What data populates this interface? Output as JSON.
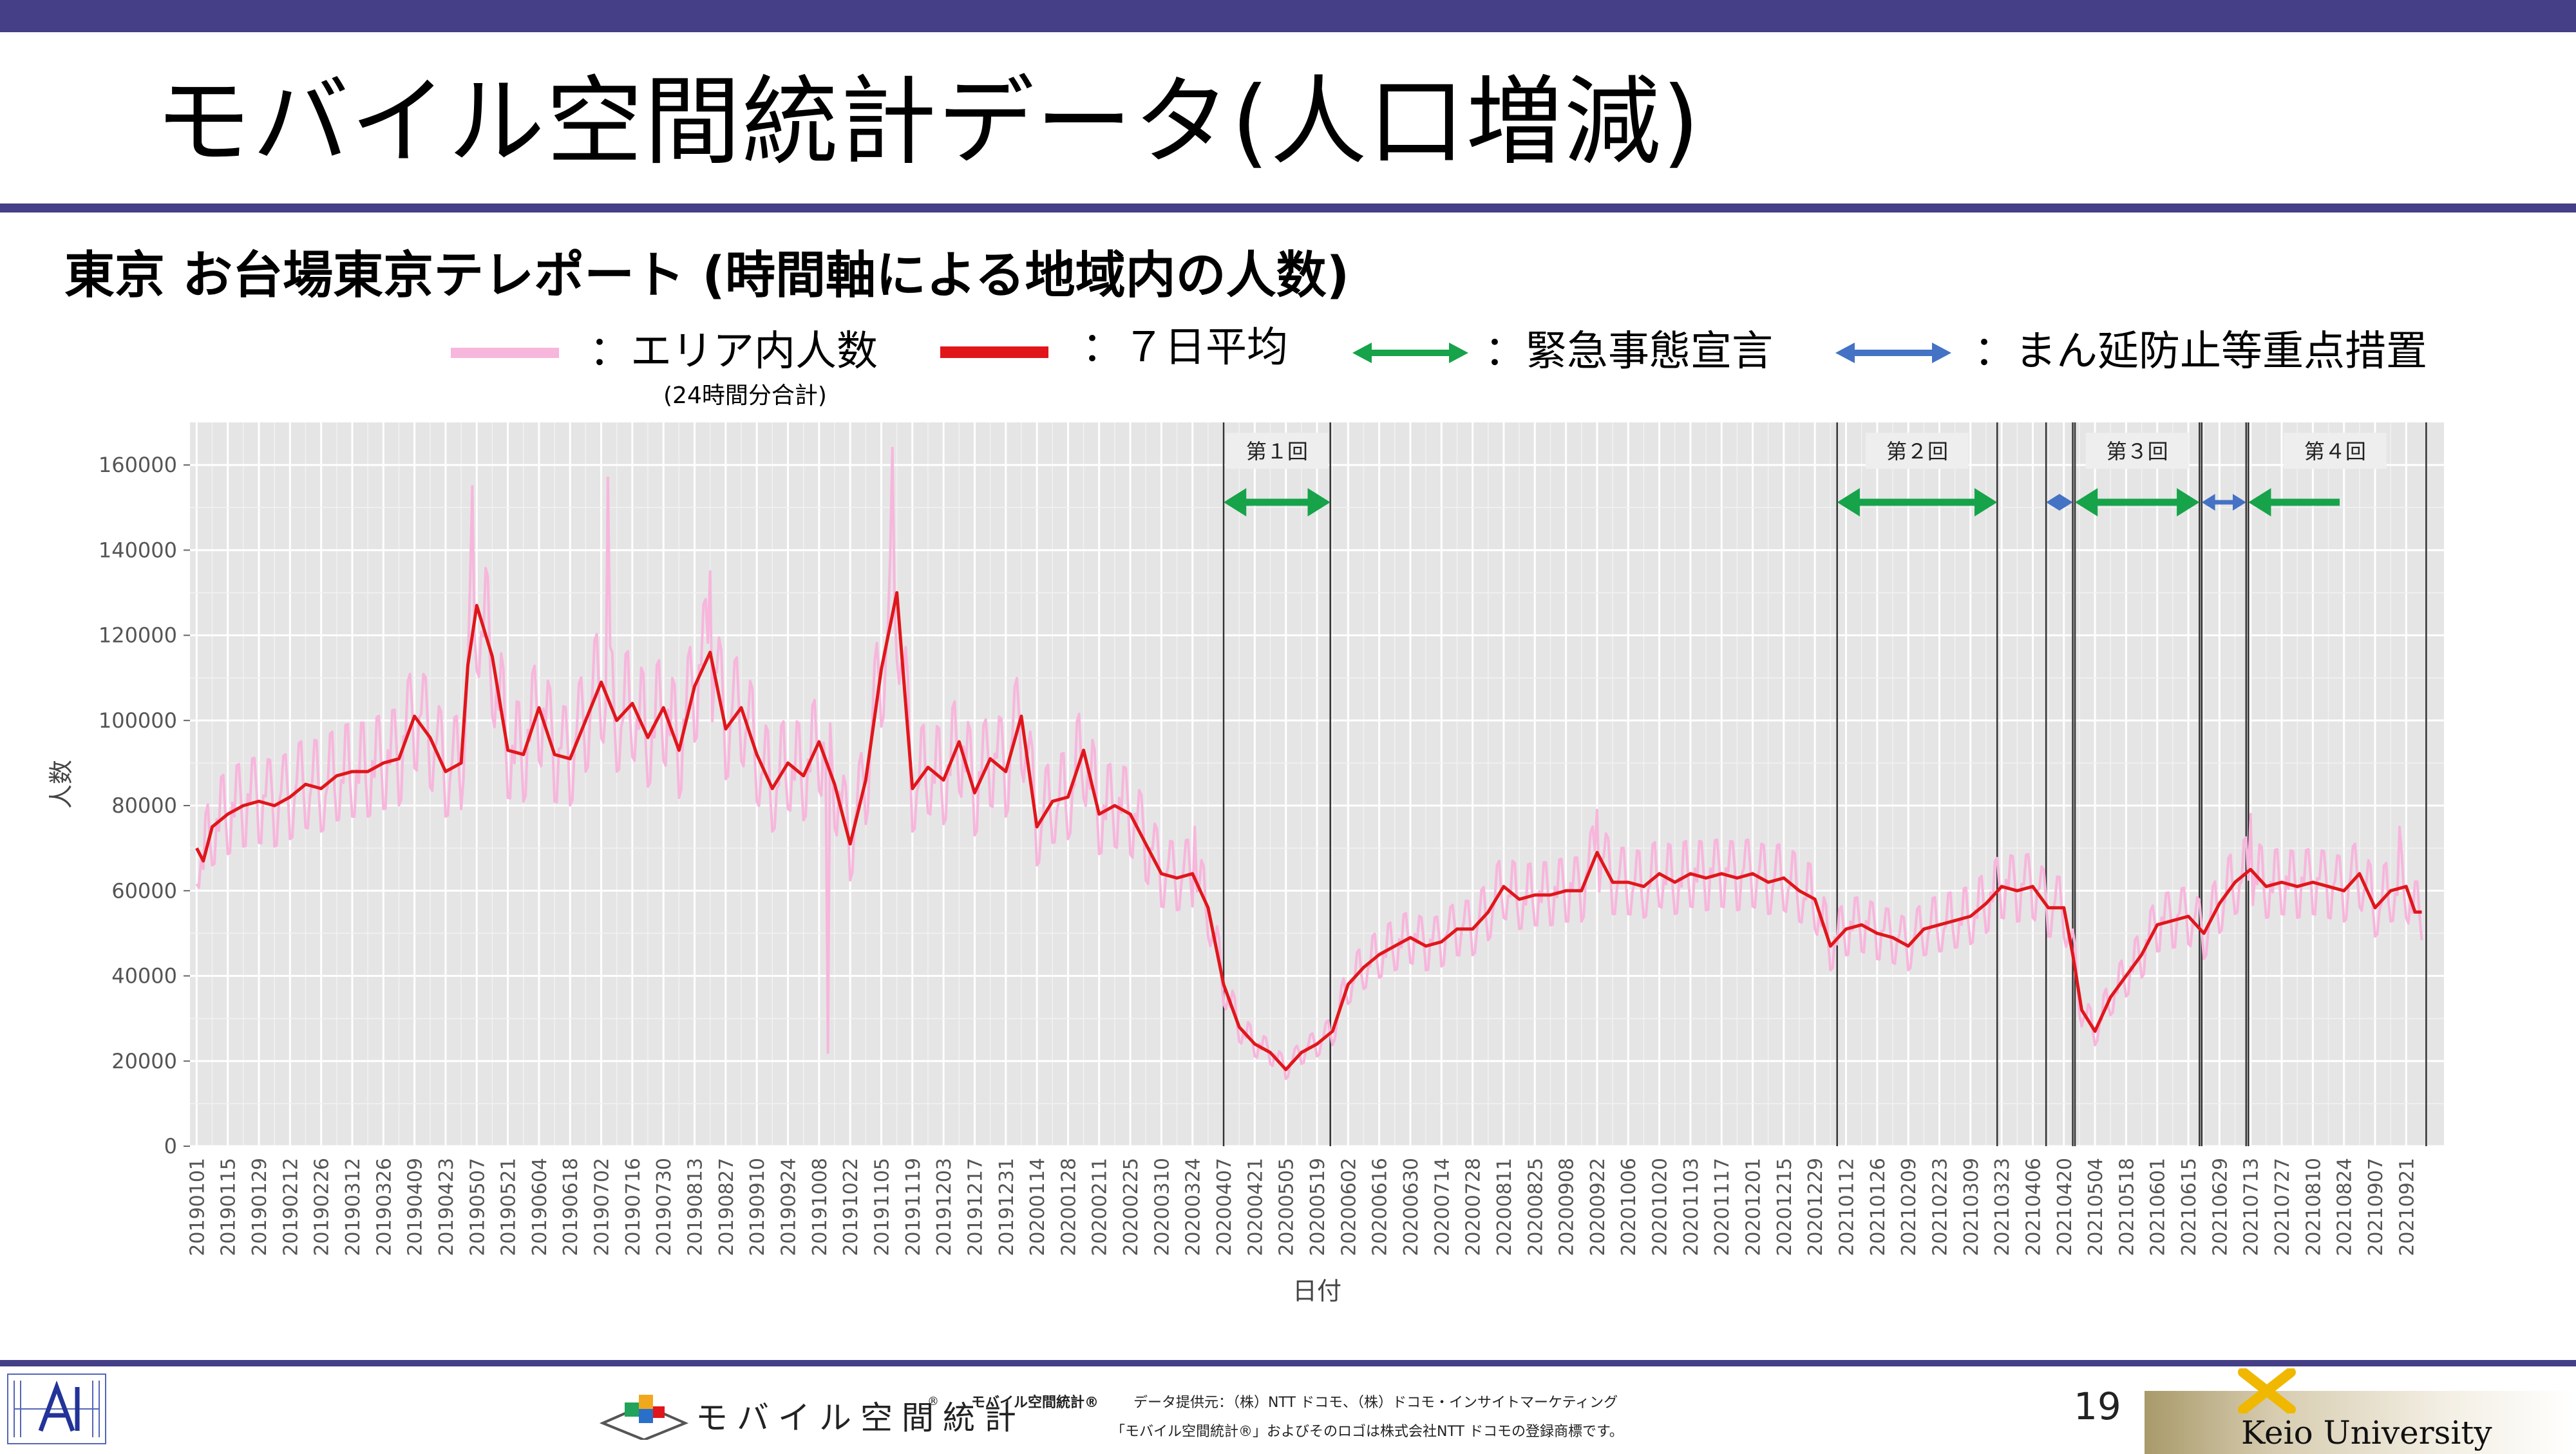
{
  "slide": {
    "title": "モバイル空間統計データ(人口増減)",
    "subtitle": "東京 お台場東京テレポート (時間軸による地域内の人数)",
    "page_number": "19"
  },
  "legend": {
    "items": [
      {
        "label": "：エリア内人数",
        "note": "(24時間分合計)",
        "color": "#f7b6dc"
      },
      {
        "label": "：７日平均",
        "color": "#e0161b"
      },
      {
        "label": "：緊急事態宣言",
        "color": "#16a34a"
      },
      {
        "label": "：まん延防止等重点措置",
        "color": "#4472c4"
      }
    ]
  },
  "footer": {
    "brand_text": "モバイル空間統計",
    "brand_mark": "®",
    "trademark_name": "モバイル空間統計®",
    "data_source": "データ提供元：（株）NTT ドコモ、（株）ドコモ・インサイトマーケティング",
    "trademark_note": "「モバイル空間統計®」およびそのロゴは株式会社NTT ドコモの登録商標です。",
    "university": "Keio University"
  },
  "chart_data": {
    "type": "line",
    "ylabel": "人数",
    "xlabel": "日付",
    "ylim": [
      0,
      170000
    ],
    "y_ticks": [
      0,
      20000,
      40000,
      60000,
      80000,
      100000,
      120000,
      140000,
      160000
    ],
    "x_range": [
      "2019-01-01",
      "2021-09-28"
    ],
    "grid": true,
    "x_tick_labels": [
      "20190101",
      "20190115",
      "20190129",
      "20190212",
      "20190226",
      "20190312",
      "20190326",
      "20190409",
      "20190423",
      "20190507",
      "20190521",
      "20190604",
      "20190618",
      "20190702",
      "20190716",
      "20190730",
      "20190813",
      "20190827",
      "20190910",
      "20190924",
      "20191008",
      "20191022",
      "20191105",
      "20191119",
      "20191203",
      "20191217",
      "20191231",
      "20200114",
      "20200128",
      "20200211",
      "20200225",
      "20200310",
      "20200324",
      "20200407",
      "20200421",
      "20200505",
      "20200519",
      "20200602",
      "20200616",
      "20200630",
      "20200714",
      "20200728",
      "20200811",
      "20200825",
      "20200908",
      "20200922",
      "20201006",
      "20201020",
      "20201103",
      "20201117",
      "20201201",
      "20201215",
      "20201229",
      "20210112",
      "20210126",
      "20210209",
      "20210223",
      "20210309",
      "20210323",
      "20210406",
      "20210420",
      "20210504",
      "20210518",
      "20210601",
      "20210615",
      "20210629",
      "20210713",
      "20210727",
      "20210810",
      "20210824",
      "20210907",
      "20210921"
    ],
    "series": [
      {
        "name": "７日平均",
        "color": "#e0161b",
        "points": [
          [
            "2019-01-01",
            70000
          ],
          [
            "2019-01-04",
            67000
          ],
          [
            "2019-01-08",
            75000
          ],
          [
            "2019-01-15",
            78000
          ],
          [
            "2019-01-22",
            80000
          ],
          [
            "2019-01-29",
            81000
          ],
          [
            "2019-02-05",
            80000
          ],
          [
            "2019-02-12",
            82000
          ],
          [
            "2019-02-19",
            85000
          ],
          [
            "2019-02-26",
            84000
          ],
          [
            "2019-03-05",
            87000
          ],
          [
            "2019-03-12",
            88000
          ],
          [
            "2019-03-19",
            88000
          ],
          [
            "2019-03-26",
            90000
          ],
          [
            "2019-04-02",
            91000
          ],
          [
            "2019-04-09",
            101000
          ],
          [
            "2019-04-16",
            96000
          ],
          [
            "2019-04-23",
            88000
          ],
          [
            "2019-04-30",
            90000
          ],
          [
            "2019-05-03",
            113000
          ],
          [
            "2019-05-07",
            127000
          ],
          [
            "2019-05-14",
            115000
          ],
          [
            "2019-05-21",
            93000
          ],
          [
            "2019-05-28",
            92000
          ],
          [
            "2019-06-04",
            103000
          ],
          [
            "2019-06-11",
            92000
          ],
          [
            "2019-06-18",
            91000
          ],
          [
            "2019-06-25",
            100000
          ],
          [
            "2019-07-02",
            109000
          ],
          [
            "2019-07-09",
            100000
          ],
          [
            "2019-07-16",
            104000
          ],
          [
            "2019-07-23",
            96000
          ],
          [
            "2019-07-30",
            103000
          ],
          [
            "2019-08-06",
            93000
          ],
          [
            "2019-08-13",
            108000
          ],
          [
            "2019-08-20",
            116000
          ],
          [
            "2019-08-27",
            98000
          ],
          [
            "2019-09-03",
            103000
          ],
          [
            "2019-09-10",
            92000
          ],
          [
            "2019-09-17",
            84000
          ],
          [
            "2019-09-24",
            90000
          ],
          [
            "2019-10-01",
            87000
          ],
          [
            "2019-10-08",
            95000
          ],
          [
            "2019-10-15",
            85000
          ],
          [
            "2019-10-22",
            71000
          ],
          [
            "2019-10-29",
            86000
          ],
          [
            "2019-11-05",
            112000
          ],
          [
            "2019-11-12",
            130000
          ],
          [
            "2019-11-19",
            84000
          ],
          [
            "2019-11-26",
            89000
          ],
          [
            "2019-12-03",
            86000
          ],
          [
            "2019-12-10",
            95000
          ],
          [
            "2019-12-17",
            83000
          ],
          [
            "2019-12-24",
            91000
          ],
          [
            "2019-12-31",
            88000
          ],
          [
            "2020-01-07",
            101000
          ],
          [
            "2020-01-14",
            75000
          ],
          [
            "2020-01-21",
            81000
          ],
          [
            "2020-01-28",
            82000
          ],
          [
            "2020-02-04",
            93000
          ],
          [
            "2020-02-11",
            78000
          ],
          [
            "2020-02-18",
            80000
          ],
          [
            "2020-02-25",
            78000
          ],
          [
            "2020-03-03",
            71000
          ],
          [
            "2020-03-10",
            64000
          ],
          [
            "2020-03-17",
            63000
          ],
          [
            "2020-03-24",
            64000
          ],
          [
            "2020-03-31",
            56000
          ],
          [
            "2020-04-07",
            38000
          ],
          [
            "2020-04-14",
            28000
          ],
          [
            "2020-04-21",
            24000
          ],
          [
            "2020-04-28",
            22000
          ],
          [
            "2020-05-05",
            18000
          ],
          [
            "2020-05-12",
            22000
          ],
          [
            "2020-05-19",
            24000
          ],
          [
            "2020-05-26",
            27000
          ],
          [
            "2020-06-02",
            38000
          ],
          [
            "2020-06-09",
            42000
          ],
          [
            "2020-06-16",
            45000
          ],
          [
            "2020-06-23",
            47000
          ],
          [
            "2020-06-30",
            49000
          ],
          [
            "2020-07-07",
            47000
          ],
          [
            "2020-07-14",
            48000
          ],
          [
            "2020-07-21",
            51000
          ],
          [
            "2020-07-28",
            51000
          ],
          [
            "2020-08-04",
            55000
          ],
          [
            "2020-08-11",
            61000
          ],
          [
            "2020-08-18",
            58000
          ],
          [
            "2020-08-25",
            59000
          ],
          [
            "2020-09-01",
            59000
          ],
          [
            "2020-09-08",
            60000
          ],
          [
            "2020-09-15",
            60000
          ],
          [
            "2020-09-22",
            69000
          ],
          [
            "2020-09-29",
            62000
          ],
          [
            "2020-10-06",
            62000
          ],
          [
            "2020-10-13",
            61000
          ],
          [
            "2020-10-20",
            64000
          ],
          [
            "2020-10-27",
            62000
          ],
          [
            "2020-11-03",
            64000
          ],
          [
            "2020-11-10",
            63000
          ],
          [
            "2020-11-17",
            64000
          ],
          [
            "2020-11-24",
            63000
          ],
          [
            "2020-12-01",
            64000
          ],
          [
            "2020-12-08",
            62000
          ],
          [
            "2020-12-15",
            63000
          ],
          [
            "2020-12-22",
            60000
          ],
          [
            "2020-12-29",
            58000
          ],
          [
            "2021-01-05",
            47000
          ],
          [
            "2021-01-12",
            51000
          ],
          [
            "2021-01-19",
            52000
          ],
          [
            "2021-01-26",
            50000
          ],
          [
            "2021-02-02",
            49000
          ],
          [
            "2021-02-09",
            47000
          ],
          [
            "2021-02-16",
            51000
          ],
          [
            "2021-02-23",
            52000
          ],
          [
            "2021-03-02",
            53000
          ],
          [
            "2021-03-09",
            54000
          ],
          [
            "2021-03-16",
            57000
          ],
          [
            "2021-03-23",
            61000
          ],
          [
            "2021-03-30",
            60000
          ],
          [
            "2021-04-06",
            61000
          ],
          [
            "2021-04-13",
            56000
          ],
          [
            "2021-04-20",
            56000
          ],
          [
            "2021-04-24",
            45000
          ],
          [
            "2021-04-28",
            32000
          ],
          [
            "2021-05-04",
            27000
          ],
          [
            "2021-05-11",
            35000
          ],
          [
            "2021-05-18",
            40000
          ],
          [
            "2021-05-25",
            45000
          ],
          [
            "2021-06-01",
            52000
          ],
          [
            "2021-06-08",
            53000
          ],
          [
            "2021-06-15",
            54000
          ],
          [
            "2021-06-22",
            50000
          ],
          [
            "2021-06-29",
            57000
          ],
          [
            "2021-07-06",
            62000
          ],
          [
            "2021-07-13",
            65000
          ],
          [
            "2021-07-20",
            61000
          ],
          [
            "2021-07-27",
            62000
          ],
          [
            "2021-08-03",
            61000
          ],
          [
            "2021-08-10",
            62000
          ],
          [
            "2021-08-17",
            61000
          ],
          [
            "2021-08-24",
            60000
          ],
          [
            "2021-08-31",
            64000
          ],
          [
            "2021-09-07",
            56000
          ],
          [
            "2021-09-14",
            60000
          ],
          [
            "2021-09-21",
            61000
          ],
          [
            "2021-09-25",
            55000
          ],
          [
            "2021-09-28",
            55000
          ]
        ]
      },
      {
        "name": "エリア内人数",
        "color": "#f7b6dc",
        "style": "daily values oscillating around the 7-day average with a weekly cycle",
        "swing_lo": 0.88,
        "swing_hi": 1.13,
        "spikes": [
          [
            "2019-05-05",
            155000
          ],
          [
            "2019-07-05",
            157000
          ],
          [
            "2019-08-20",
            135000
          ],
          [
            "2019-10-12",
            22000
          ],
          [
            "2019-11-10",
            164000
          ],
          [
            "2020-03-25",
            75000
          ],
          [
            "2020-09-22",
            79000
          ],
          [
            "2021-07-13",
            78000
          ],
          [
            "2021-09-18",
            75000
          ]
        ]
      }
    ],
    "periods": [
      {
        "label": "第１回",
        "type": "緊急事態宣言",
        "start": "2020-04-07",
        "end": "2020-05-25"
      },
      {
        "label": "第２回",
        "type": "緊急事態宣言",
        "start": "2021-01-08",
        "end": "2021-03-21"
      },
      {
        "label": "",
        "type": "まん延防止等重点措置",
        "start": "2021-04-12",
        "end": "2021-04-24"
      },
      {
        "label": "第３回",
        "type": "緊急事態宣言",
        "start": "2021-04-25",
        "end": "2021-06-20"
      },
      {
        "label": "",
        "type": "まん延防止等重点措置",
        "start": "2021-06-21",
        "end": "2021-07-11"
      },
      {
        "label": "第４回",
        "type": "緊急事態宣言",
        "start": "2021-07-12",
        "end": "2021-09-30"
      }
    ]
  }
}
